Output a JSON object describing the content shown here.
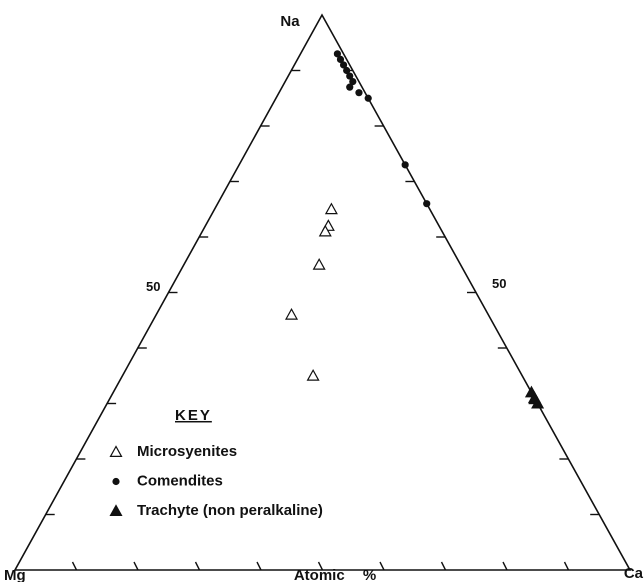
{
  "chart_data": {
    "type": "ternary",
    "vertices": {
      "top": "Na",
      "left": "Mg",
      "right": "Ca"
    },
    "axis_label": "Atomic %",
    "ticks": [
      10,
      20,
      30,
      40,
      50,
      60,
      70,
      80,
      90
    ],
    "labeled_tick": 50,
    "legend_title": "KEY",
    "series": [
      {
        "name": "Microsyenites",
        "marker": "open-triangle",
        "color": "#111111",
        "na": [
          65,
          62,
          61,
          55,
          46,
          35
        ],
        "mg": [
          16,
          18,
          19,
          23,
          32,
          34
        ],
        "ca": [
          19,
          20,
          20,
          22,
          22,
          31
        ]
      },
      {
        "name": "Comendites",
        "marker": "dot",
        "color": "#111111",
        "na": [
          93,
          92,
          91,
          90,
          89,
          88,
          87,
          86,
          85,
          73,
          66
        ],
        "mg": [
          1,
          1,
          1,
          1,
          1,
          1,
          2,
          1,
          0,
          0,
          0
        ],
        "ca": [
          6,
          7,
          8,
          9,
          10,
          11,
          11,
          13,
          15,
          27,
          34
        ]
      },
      {
        "name": "Trachyte (non peralkaline)",
        "marker": "filled-triangle",
        "color": "#111111",
        "na": [
          32,
          31,
          30
        ],
        "mg": [
          0,
          0,
          0
        ],
        "ca": [
          68,
          69,
          70
        ]
      }
    ]
  }
}
